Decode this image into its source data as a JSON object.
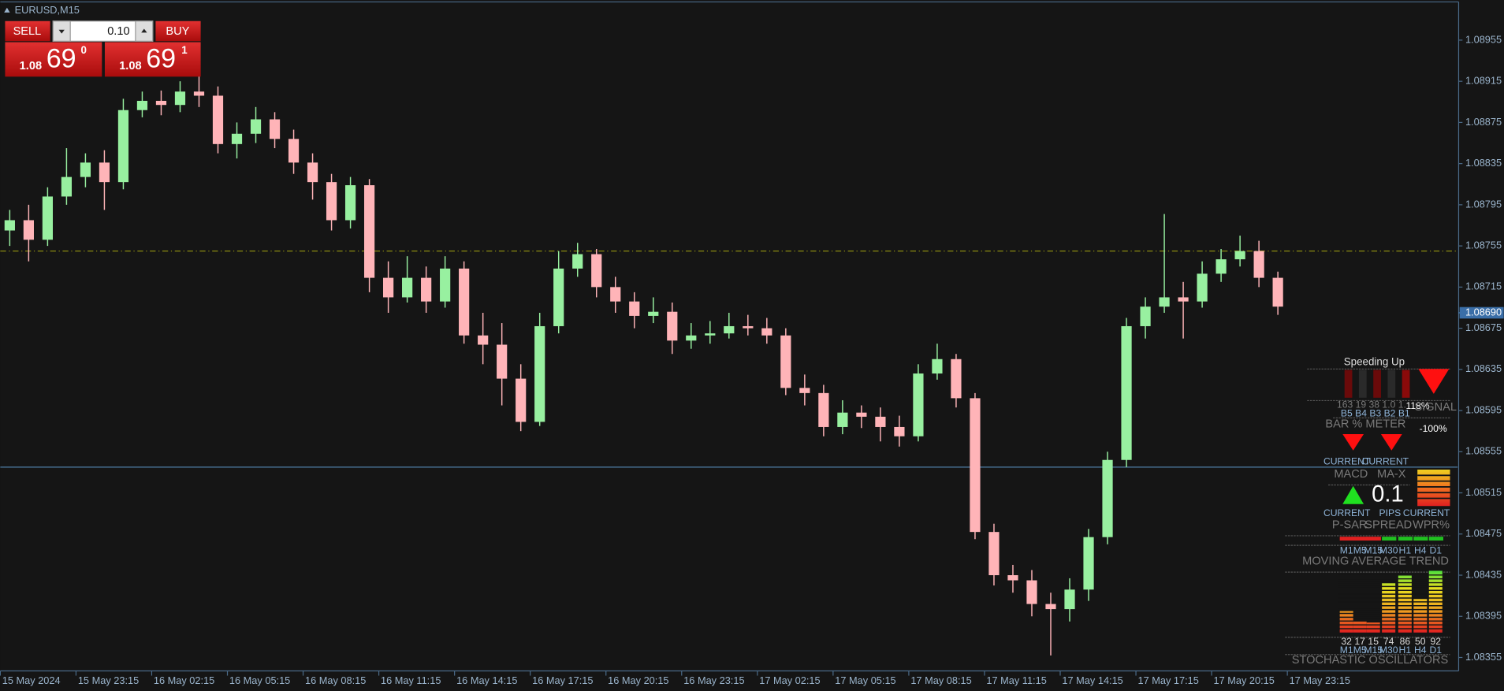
{
  "chart_data": {
    "type": "candlestick",
    "title": "EURUSD,M15",
    "x": [
      2,
      6,
      10,
      14,
      18,
      22,
      26,
      30,
      34,
      38,
      42,
      46,
      50,
      54,
      58,
      62,
      66,
      70,
      74,
      78,
      82,
      86,
      90,
      94,
      98,
      102,
      106,
      110,
      114,
      118,
      122,
      126,
      130,
      134,
      138,
      142,
      146,
      150,
      154,
      158,
      162,
      166,
      170,
      174,
      178,
      182,
      186,
      190,
      194,
      198,
      202,
      206,
      210,
      214,
      218,
      222,
      226,
      230,
      234,
      238,
      242,
      246,
      250,
      254,
      258,
      262,
      266,
      270
    ],
    "open": [
      1.0877,
      1.0878,
      1.08761,
      1.08803,
      1.08822,
      1.08836,
      1.08817,
      1.08887,
      1.08896,
      1.08892,
      1.08905,
      1.08901,
      1.08854,
      1.08864,
      1.08878,
      1.08859,
      1.08836,
      1.08817,
      1.0878,
      1.08814,
      1.08724,
      1.08705,
      1.08724,
      1.08701,
      1.08733,
      1.08668,
      1.08659,
      1.08626,
      1.08584,
      1.08677,
      1.08733,
      1.08747,
      1.08715,
      1.08701,
      1.08687,
      1.08691,
      1.08663,
      1.08668,
      1.0867,
      1.08677,
      1.08675,
      1.08668,
      1.08617,
      1.08612,
      1.08579,
      1.08593,
      1.08589,
      1.08579,
      1.0857,
      1.08631,
      1.08645,
      1.08607,
      1.08477,
      1.08435,
      1.0843,
      1.08407,
      1.08402,
      1.08421,
      1.08472,
      1.08547,
      1.08677,
      1.08696,
      1.08705,
      1.08701,
      1.08728,
      1.08742,
      1.0875,
      1.08724
    ],
    "high": [
      1.0879,
      1.08795,
      1.08812,
      1.0885,
      1.08845,
      1.08848,
      1.08898,
      1.08905,
      1.08906,
      1.08915,
      1.08935,
      1.0891,
      1.08875,
      1.0889,
      1.08885,
      1.08868,
      1.08845,
      1.08825,
      1.08822,
      1.0882,
      1.0874,
      1.08745,
      1.08735,
      1.08745,
      1.0874,
      1.0869,
      1.0868,
      1.0864,
      1.0869,
      1.0875,
      1.08758,
      1.08752,
      1.08725,
      1.0871,
      1.08705,
      1.087,
      1.0868,
      1.08682,
      1.0869,
      1.08688,
      1.08685,
      1.08675,
      1.0863,
      1.0862,
      1.08605,
      1.086,
      1.08598,
      1.0859,
      1.0864,
      1.0866,
      1.0865,
      1.08612,
      1.08485,
      1.08445,
      1.0844,
      1.08418,
      1.08432,
      1.0848,
      1.08555,
      1.08685,
      1.08705,
      1.08786,
      1.0872,
      1.0874,
      1.08752,
      1.08765,
      1.0876,
      1.0873
    ],
    "low": [
      1.08755,
      1.0874,
      1.08755,
      1.08795,
      1.08812,
      1.0879,
      1.0881,
      1.0888,
      1.08882,
      1.08885,
      1.0889,
      1.08845,
      1.0884,
      1.08855,
      1.0885,
      1.08825,
      1.088,
      1.0877,
      1.08772,
      1.0871,
      1.0869,
      1.087,
      1.0869,
      1.08695,
      1.0866,
      1.0864,
      1.086,
      1.08575,
      1.0858,
      1.0867,
      1.08725,
      1.08705,
      1.0869,
      1.08675,
      1.0868,
      1.0865,
      1.08655,
      1.0866,
      1.08665,
      1.08668,
      1.0866,
      1.0861,
      1.086,
      1.0857,
      1.08572,
      1.08578,
      1.08565,
      1.0856,
      1.08565,
      1.08625,
      1.08598,
      1.0847,
      1.08425,
      1.08418,
      1.08395,
      1.08357,
      1.0839,
      1.0841,
      1.08465,
      1.0854,
      1.08665,
      1.0869,
      1.08665,
      1.08695,
      1.0872,
      1.08735,
      1.08715,
      1.08688
    ],
    "close": [
      1.0878,
      1.08761,
      1.08803,
      1.08822,
      1.08836,
      1.08817,
      1.08887,
      1.08896,
      1.08892,
      1.08905,
      1.08901,
      1.08854,
      1.08864,
      1.08878,
      1.08859,
      1.08836,
      1.08817,
      1.0878,
      1.08814,
      1.08724,
      1.08705,
      1.08724,
      1.08701,
      1.08733,
      1.08668,
      1.08659,
      1.08626,
      1.08584,
      1.08677,
      1.08733,
      1.08747,
      1.08715,
      1.08701,
      1.08687,
      1.08691,
      1.08663,
      1.08668,
      1.0867,
      1.08677,
      1.08675,
      1.08668,
      1.08617,
      1.08612,
      1.08579,
      1.08593,
      1.08589,
      1.08579,
      1.0857,
      1.08631,
      1.08645,
      1.08607,
      1.08477,
      1.08435,
      1.0843,
      1.08407,
      1.08402,
      1.08421,
      1.08472,
      1.08547,
      1.08677,
      1.08696,
      1.08705,
      1.08701,
      1.08728,
      1.08742,
      1.0875,
      1.08724,
      1.08696
    ],
    "up_color": "#98f0a0",
    "down_color": "#ffb4b8",
    "xlim": [
      0,
      308
    ],
    "xticks": [
      {
        "value": 0,
        "label": "15 May 2024"
      },
      {
        "value": 16,
        "label": "15 May 23:15"
      },
      {
        "value": 32,
        "label": "16 May 02:15"
      },
      {
        "value": 48,
        "label": "16 May 05:15"
      },
      {
        "value": 64,
        "label": "16 May 08:15"
      },
      {
        "value": 80,
        "label": "16 May 11:15"
      },
      {
        "value": 96,
        "label": "16 May 14:15"
      },
      {
        "value": 112,
        "label": "16 May 17:15"
      },
      {
        "value": 128,
        "label": "16 May 20:15"
      },
      {
        "value": 144,
        "label": "16 May 23:15"
      },
      {
        "value": 160,
        "label": "17 May 02:15"
      },
      {
        "value": 176,
        "label": "17 May 05:15"
      },
      {
        "value": 192,
        "label": "17 May 08:15"
      },
      {
        "value": 208,
        "label": "17 May 11:15"
      },
      {
        "value": 224,
        "label": "17 May 14:15"
      },
      {
        "value": 240,
        "label": "17 May 17:15"
      },
      {
        "value": 256,
        "label": "17 May 20:15"
      },
      {
        "value": 272,
        "label": "17 May 23:15"
      }
    ],
    "ylim": [
      1.08342,
      1.08994
    ],
    "yticks": [
      1.08955,
      1.08915,
      1.08875,
      1.08835,
      1.08795,
      1.08755,
      1.08715,
      1.08675,
      1.08635,
      1.08595,
      1.08555,
      1.08515,
      1.08475,
      1.08435,
      1.08395,
      1.08355
    ],
    "last_price": {
      "value": 1.0869,
      "label": "1.08690"
    },
    "hlines": [
      {
        "value": 1.0875,
        "color": "#8a8a10",
        "dashed": true
      },
      {
        "value": 1.0854,
        "color": "#4f7fa6",
        "dashed": false
      }
    ]
  },
  "trade_panel": {
    "sell": "SELL",
    "buy": "BUY",
    "lot": "0.10",
    "sell_price": {
      "prefix": "1.08",
      "big": "69",
      "small": "0"
    },
    "buy_price": {
      "prefix": "1.08",
      "big": "69",
      "small": "1"
    }
  },
  "indicators": {
    "speeding": "Speeding Up",
    "bar_values": "163 19 38 1.0 1.",
    "bar_labels": "B5 B4 B3 B2 B1",
    "bar_pct": "118%",
    "signal": "SIGNAL",
    "bar_meter": "BAR % METER",
    "neg_pct": "-100%",
    "macd": {
      "top": "CURRENT",
      "name": "MACD"
    },
    "max": {
      "top": "CURRENT",
      "name": "MA-X"
    },
    "psar": {
      "top": "CURRENT",
      "name": "P-SAR"
    },
    "spread": {
      "top": "PIPS",
      "value": "0.1",
      "name": "SPREAD"
    },
    "wpr": {
      "top": "CURRENT",
      "name": "WPR%"
    },
    "ma_trend": {
      "timeframes": [
        "M1",
        "M5",
        "M15",
        "M30",
        "H1",
        "H4",
        "D1"
      ],
      "colors": [
        "#e02020",
        "#e02020",
        "#e02020",
        "#20c020",
        "#20c020",
        "#20c020",
        "#20c020"
      ],
      "title": "MOVING AVERAGE TREND"
    },
    "stochastic": {
      "values": [
        32,
        17,
        15,
        74,
        86,
        50,
        92
      ],
      "timeframes": [
        "M1",
        "M5",
        "M15",
        "M30",
        "H1",
        "H4",
        "D1"
      ],
      "title": "STOCHASTIC OSCILLATORS"
    }
  }
}
